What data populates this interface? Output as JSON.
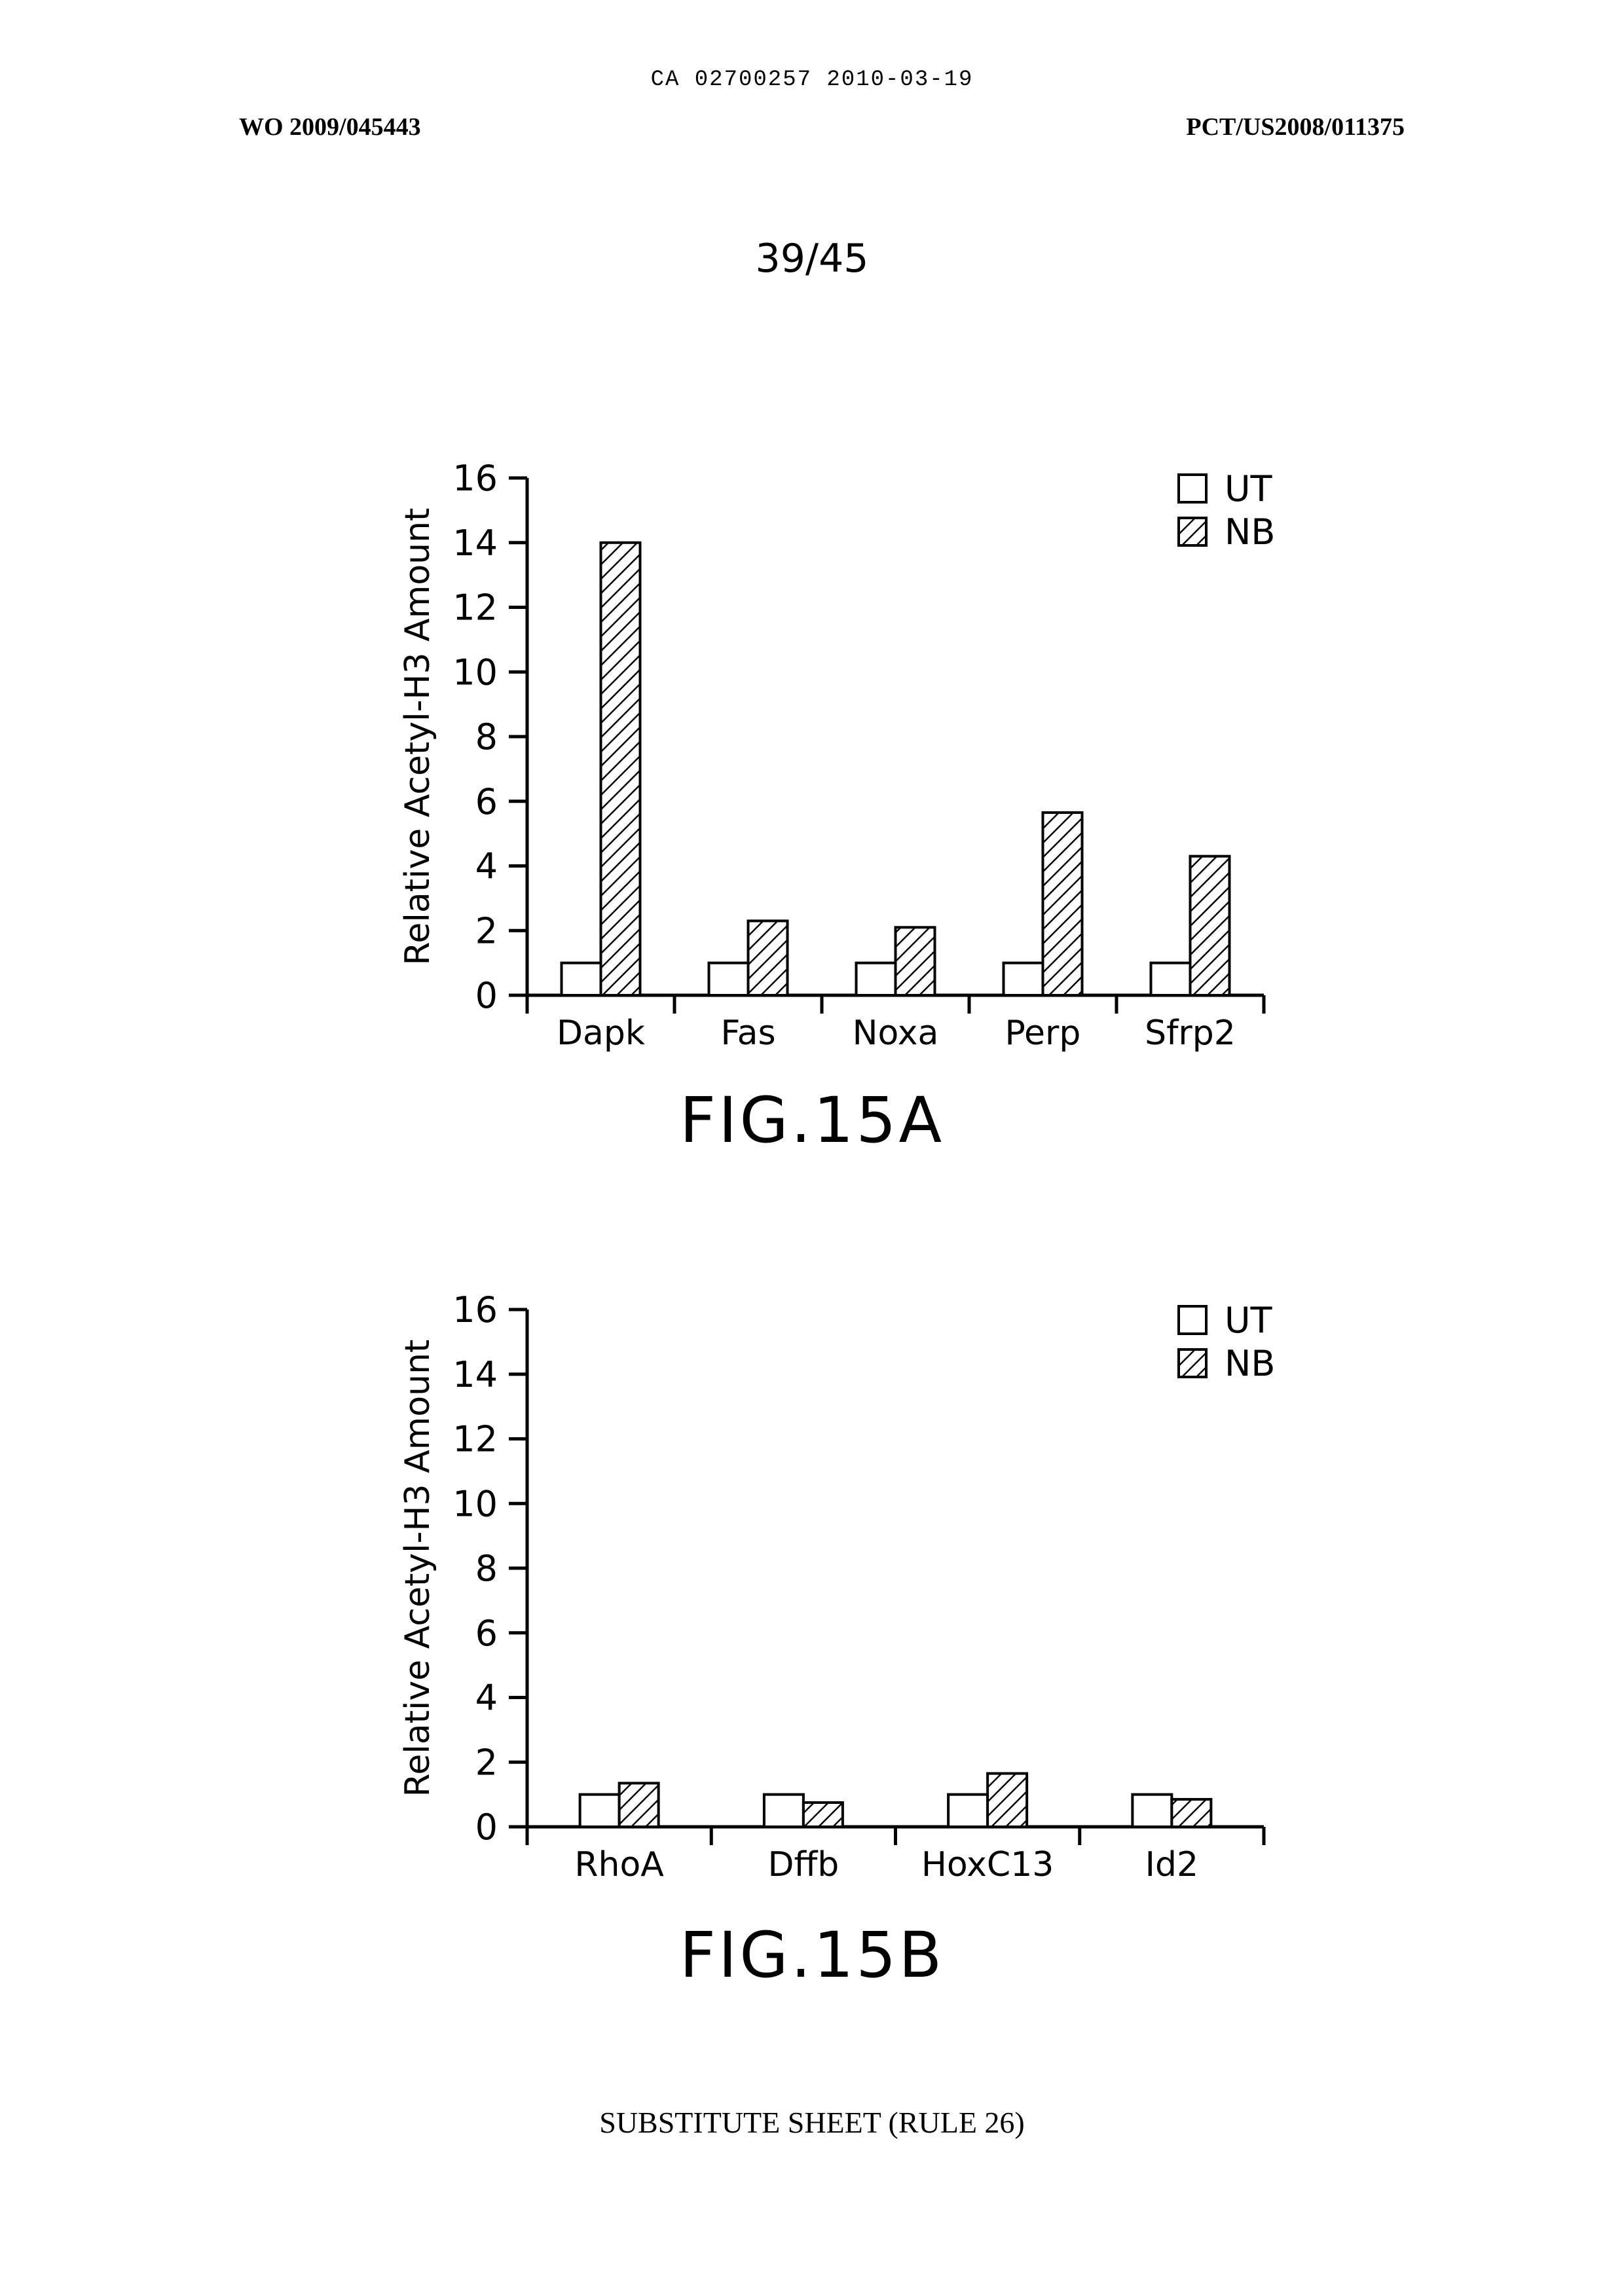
{
  "header": {
    "ca_line": "CA 02700257 2010-03-19",
    "wo_number": "WO 2009/045443",
    "pct_number": "PCT/US2008/011375",
    "sheet_number": "39/45"
  },
  "figures": {
    "a_label": "FIG.15A",
    "b_label": "FIG.15B"
  },
  "footer": "SUBSTITUTE SHEET (RULE 26)",
  "chart_data": [
    {
      "type": "bar",
      "title": "",
      "categories": [
        "Dapk",
        "Fas",
        "Noxa",
        "Perp",
        "Sfrp2"
      ],
      "series": [
        {
          "name": "UT",
          "values": [
            1.0,
            1.0,
            1.0,
            1.0,
            1.0
          ],
          "pattern": "open"
        },
        {
          "name": "NB",
          "values": [
            14.0,
            2.3,
            2.1,
            5.65,
            4.3
          ],
          "pattern": "hatched"
        }
      ],
      "xlabel": "",
      "ylabel": "Relative Acetyl-H3 Amount",
      "ylim": [
        0,
        16
      ],
      "yticks": [
        0,
        2,
        4,
        6,
        8,
        10,
        12,
        14,
        16
      ],
      "grid": false,
      "legend": "top-right"
    },
    {
      "type": "bar",
      "title": "",
      "categories": [
        "RhoA",
        "Dffb",
        "HoxC13",
        "Id2"
      ],
      "series": [
        {
          "name": "UT",
          "values": [
            1.0,
            1.0,
            1.0,
            1.0
          ],
          "pattern": "open"
        },
        {
          "name": "NB",
          "values": [
            1.35,
            0.75,
            1.65,
            0.85
          ],
          "pattern": "hatched"
        }
      ],
      "xlabel": "",
      "ylabel": "Relative Acetyl-H3 Amount",
      "ylim": [
        0,
        16
      ],
      "yticks": [
        0,
        2,
        4,
        6,
        8,
        10,
        12,
        14,
        16
      ],
      "grid": false,
      "legend": "top-right"
    }
  ]
}
